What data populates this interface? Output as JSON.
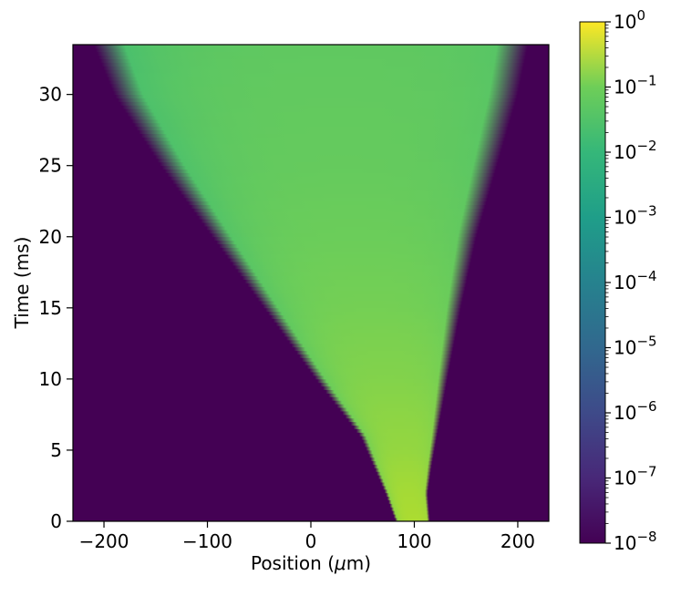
{
  "chart_data": {
    "type": "heatmap",
    "title": "",
    "xlabel": "Position (",
    "xlabel_mu": "μ",
    "xlabel_unit": "m)",
    "ylabel": "Time (ms)",
    "xlim": [
      -230,
      230
    ],
    "ylim": [
      0,
      33.5
    ],
    "x_ticks": [
      {
        "value": -200,
        "label": "−200"
      },
      {
        "value": -100,
        "label": "−100"
      },
      {
        "value": 0,
        "label": "0"
      },
      {
        "value": 100,
        "label": "100"
      },
      {
        "value": 200,
        "label": "200"
      }
    ],
    "y_ticks": [
      {
        "value": 0,
        "label": "0"
      },
      {
        "value": 5,
        "label": "5"
      },
      {
        "value": 10,
        "label": "10"
      },
      {
        "value": 15,
        "label": "15"
      },
      {
        "value": 20,
        "label": "20"
      },
      {
        "value": 25,
        "label": "25"
      },
      {
        "value": 30,
        "label": "30"
      }
    ],
    "colorbar": {
      "scale": "log",
      "colormap": "viridis",
      "range": [
        1e-08,
        1
      ],
      "tick_base": "10",
      "tick_exponents": [
        "0",
        "−1",
        "−2",
        "−3",
        "−4",
        "−5",
        "−6",
        "−7",
        "−8"
      ]
    },
    "front_boundary": {
      "t_ms": [
        0,
        2,
        4,
        6,
        10,
        15,
        20,
        25,
        30,
        33.5
      ],
      "left_um": [
        82,
        72,
        60,
        48,
        5,
        -45,
        -95,
        -145,
        -190,
        -210
      ],
      "right_um": [
        115,
        113,
        117,
        122,
        132,
        145,
        160,
        180,
        200,
        210
      ]
    },
    "density_at_t": {
      "t_ms": [
        0,
        5,
        10,
        15,
        20,
        25,
        30,
        33.5
      ],
      "peak_value": [
        0.1,
        0.05,
        0.03,
        0.02,
        0.015,
        0.012,
        0.011,
        0.01
      ]
    },
    "background_value": 1e-08
  }
}
